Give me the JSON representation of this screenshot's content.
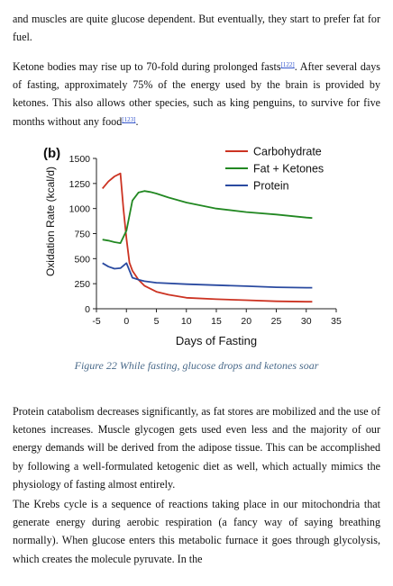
{
  "intro_text": "and muscles are quite glucose dependent. But eventually, they start to prefer fat for fuel.",
  "ketone_text": "Ketone bodies may rise up to 70-fold during prolonged fasts",
  "ketone_ref": "[122]",
  "ketone_text2": ". After several days of fasting, approximately 75% of the energy used by the brain is provided by ketones. This also allows other species, such as king penguins, to survive for five months without any food",
  "penguin_ref": "[123]",
  "penguin_tail": ".",
  "figure": {
    "caption": "Figure 22 While fasting, glucose drops and ketones soar"
  },
  "chart_data": {
    "type": "line",
    "panel_label": "(b)",
    "xlabel": "Days of Fasting",
    "ylabel": "Oxidation Rate (kcal/d)",
    "xlim": [
      -5,
      35
    ],
    "ylim": [
      0,
      1500
    ],
    "xticks": [
      "-5",
      "0",
      "5",
      "10",
      "15",
      "20",
      "25",
      "30",
      "35"
    ],
    "yticks": [
      "0",
      "250",
      "500",
      "750",
      "1000",
      "1250",
      "1500"
    ],
    "legend_position": "top-right",
    "grid": false,
    "series": [
      {
        "name": "Carbohydrate",
        "color": "#cc3322",
        "x": [
          -4,
          -3,
          -2,
          -1,
          -0.5,
          0,
          0.5,
          1,
          2,
          3,
          5,
          7,
          10,
          15,
          20,
          25,
          30,
          31
        ],
        "y": [
          1200,
          1270,
          1320,
          1350,
          1000,
          700,
          460,
          380,
          290,
          230,
          170,
          140,
          110,
          95,
          85,
          75,
          70,
          70
        ]
      },
      {
        "name": "Fat + Ketones",
        "color": "#228822",
        "x": [
          -4,
          -3,
          -2,
          -1,
          0,
          1,
          2,
          3,
          4,
          5,
          7,
          10,
          15,
          20,
          25,
          30,
          31
        ],
        "y": [
          690,
          680,
          665,
          655,
          780,
          1080,
          1160,
          1175,
          1165,
          1150,
          1110,
          1060,
          1000,
          965,
          940,
          910,
          905
        ]
      },
      {
        "name": "Protein",
        "color": "#2a4aa0",
        "x": [
          -4,
          -3,
          -2,
          -1,
          0,
          1,
          2,
          3,
          5,
          10,
          15,
          20,
          25,
          30,
          31
        ],
        "y": [
          455,
          420,
          400,
          405,
          455,
          310,
          290,
          275,
          260,
          245,
          235,
          225,
          215,
          210,
          210
        ]
      }
    ]
  },
  "protein_text": "Protein catabolism decreases significantly, as fat stores are mobilized and the use of ketones increases. Muscle glycogen gets used even less and the majority of our energy demands will be derived from the adipose tissue. This can be accomplished by following a well-formulated ketogenic diet as well, which actually mimics the physiology of fasting almost entirely.",
  "krebs_text": "The Krebs cycle is a sequence of reactions taking place in our mitochondria that generate energy during aerobic respiration (a fancy way of saying breathing normally). When glucose enters this metabolic furnace it goes through glycolysis, which creates the molecule pyruvate. In the"
}
